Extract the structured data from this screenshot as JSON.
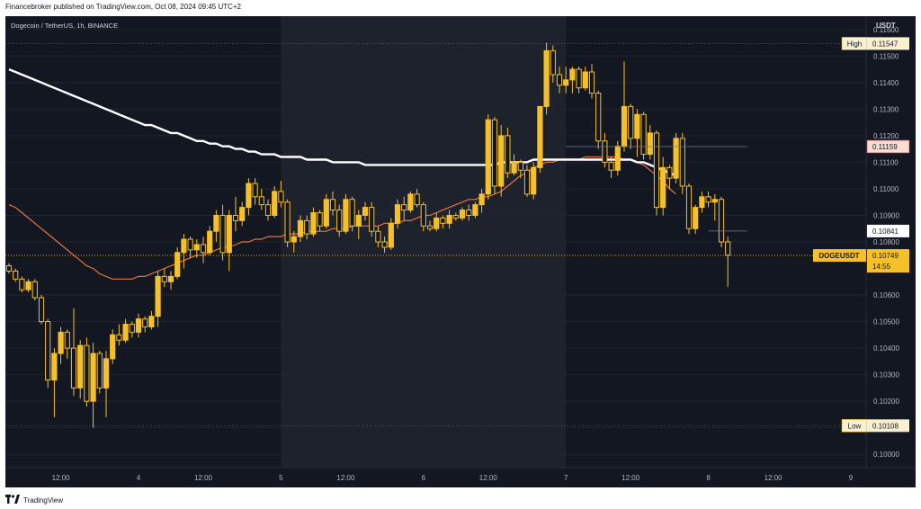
{
  "header": {
    "published": "Financebroker published on TradingView.com, Oct 08, 2024 09:45 UTC+2",
    "symbol": "Dogecoin / TetherUS, 1h, BINANCE",
    "currency": "USDT"
  },
  "footer": {
    "brand": "TradingView",
    "logo": "tv-logo-icon"
  },
  "colors": {
    "background": "#131722",
    "up": "#f6c028",
    "down": "#f6c028",
    "ma_short": "#e8743b",
    "ma_long": "#ffffff",
    "grid": "#1f2430",
    "highlight_session": "#1e222d"
  },
  "chart_data": {
    "type": "candlestick",
    "symbol": "DOGEUSDT",
    "interval": "1h",
    "exchange": "BINANCE",
    "ylim": [
      0.0995,
      0.1165
    ],
    "y_ticks": [
      "0.11600",
      "0.11500",
      "0.11400",
      "0.11300",
      "0.11200",
      "0.11100",
      "0.11000",
      "0.10900",
      "0.10800",
      "0.10600",
      "0.10500",
      "0.10400",
      "0.10300",
      "0.10200",
      "0.10100",
      "0.10000"
    ],
    "x_ticks": [
      "12:00",
      "4",
      "12:00",
      "5",
      "12:00",
      "6",
      "12:00",
      "7",
      "12:00",
      "8",
      "12:00",
      "9"
    ],
    "price_tags": [
      {
        "label": "High",
        "value": "0.11547",
        "price": 0.11547,
        "style": "hl"
      },
      {
        "label": "",
        "value": "0.11159",
        "price": 0.11159,
        "style": "red"
      },
      {
        "label": "",
        "value": "0.10841",
        "price": 0.10841,
        "style": "white"
      },
      {
        "label": "DOGEUSDT",
        "value": "0.10749",
        "price": 0.10749,
        "style": "current",
        "countdown": "14:55"
      },
      {
        "label": "Low",
        "value": "0.10108",
        "price": 0.10108,
        "style": "hl"
      }
    ],
    "series": [
      {
        "name": "MA long",
        "values": [
          0.1145,
          0.1144,
          0.1143,
          0.1142,
          0.1141,
          0.114,
          0.1139,
          0.1138,
          0.1137,
          0.1136,
          0.1135,
          0.1134,
          0.1133,
          0.1132,
          0.1131,
          0.113,
          0.1129,
          0.1128,
          0.1127,
          0.1126,
          0.1125,
          0.1124,
          0.1124,
          0.1123,
          0.1122,
          0.1121,
          0.1121,
          0.112,
          0.1119,
          0.1118,
          0.1118,
          0.1117,
          0.1117,
          0.1116,
          0.1116,
          0.1115,
          0.1115,
          0.1114,
          0.1114,
          0.1113,
          0.1113,
          0.1113,
          0.1112,
          0.1112,
          0.1112,
          0.1112,
          0.1111,
          0.1111,
          0.1111,
          0.1111,
          0.111,
          0.111,
          0.111,
          0.111,
          0.111,
          0.1109,
          0.1109,
          0.1109,
          0.1109,
          0.1109,
          0.1109,
          0.1109,
          0.1109,
          0.1109,
          0.1109,
          0.1109,
          0.1109,
          0.1109,
          0.1109,
          0.1109,
          0.1109,
          0.1109,
          0.1109,
          0.1109,
          0.1109,
          0.1109,
          0.111,
          0.111,
          0.111,
          0.111,
          0.111,
          0.1111,
          0.1111,
          0.1111,
          0.1111,
          0.1111,
          0.1111,
          0.1111,
          0.1111,
          0.1111,
          0.1111,
          0.1111,
          0.1111,
          0.1111,
          0.1111,
          0.1111,
          0.1111,
          0.111,
          0.111,
          0.1109,
          0.1108,
          0.1107,
          0.1106,
          0.1105
        ]
      },
      {
        "name": "MA short",
        "values": [
          0.1094,
          0.1093,
          0.1091,
          0.1089,
          0.1087,
          0.1085,
          0.1083,
          0.1081,
          0.1079,
          0.1077,
          0.1075,
          0.1073,
          0.1071,
          0.107,
          0.1068,
          0.1067,
          0.1066,
          0.1066,
          0.1066,
          0.1066,
          0.1067,
          0.1067,
          0.1068,
          0.1069,
          0.107,
          0.1071,
          0.1072,
          0.1073,
          0.1074,
          0.1075,
          0.1075,
          0.1076,
          0.1077,
          0.1078,
          0.1078,
          0.1079,
          0.108,
          0.108,
          0.1081,
          0.1081,
          0.1082,
          0.1082,
          0.1082,
          0.1083,
          0.1083,
          0.1083,
          0.1084,
          0.1084,
          0.1084,
          0.1084,
          0.1085,
          0.1085,
          0.1085,
          0.1086,
          0.1086,
          0.1086,
          0.1086,
          0.1086,
          0.1087,
          0.1087,
          0.1087,
          0.1088,
          0.1088,
          0.1089,
          0.109,
          0.109,
          0.1091,
          0.1092,
          0.1093,
          0.1094,
          0.1095,
          0.1096,
          0.1096,
          0.1097,
          0.1097,
          0.1098,
          0.1099,
          0.1101,
          0.1103,
          0.1105,
          0.1106,
          0.1108,
          0.1109,
          0.111,
          0.111,
          0.1111,
          0.1111,
          0.1111,
          0.1111,
          0.1112,
          0.1112,
          0.1112,
          0.1112,
          0.1112,
          0.1112,
          0.1111,
          0.1111,
          0.111,
          0.1109,
          0.1107,
          0.1105,
          0.1103,
          0.11,
          0.1098
        ]
      },
      {
        "name": "OHLC",
        "values": [
          [
            0.1071,
            0.1072,
            0.1068,
            0.1069
          ],
          [
            0.1069,
            0.107,
            0.1065,
            0.1066
          ],
          [
            0.1066,
            0.1067,
            0.1061,
            0.1062
          ],
          [
            0.1062,
            0.1066,
            0.1061,
            0.1065
          ],
          [
            0.1065,
            0.1066,
            0.1058,
            0.1059
          ],
          [
            0.1059,
            0.106,
            0.1049,
            0.105
          ],
          [
            0.105,
            0.1051,
            0.1025,
            0.1028
          ],
          [
            0.1028,
            0.104,
            0.1014,
            0.1038
          ],
          [
            0.1038,
            0.1048,
            0.1034,
            0.1046
          ],
          [
            0.1046,
            0.1047,
            0.1036,
            0.104
          ],
          [
            0.104,
            0.1055,
            0.1022,
            0.1025
          ],
          [
            0.1025,
            0.1043,
            0.1021,
            0.1041
          ],
          [
            0.1041,
            0.1044,
            0.1018,
            0.102
          ],
          [
            0.102,
            0.1042,
            0.101,
            0.1038
          ],
          [
            0.1038,
            0.1039,
            0.1023,
            0.1025
          ],
          [
            0.1025,
            0.1039,
            0.1014,
            0.1036
          ],
          [
            0.1036,
            0.1047,
            0.1034,
            0.1045
          ],
          [
            0.1045,
            0.1049,
            0.1041,
            0.1043
          ],
          [
            0.1043,
            0.1051,
            0.1042,
            0.1049
          ],
          [
            0.1049,
            0.105,
            0.1044,
            0.1046
          ],
          [
            0.1046,
            0.1053,
            0.1044,
            0.1051
          ],
          [
            0.1051,
            0.1052,
            0.1046,
            0.1048
          ],
          [
            0.1048,
            0.1054,
            0.1047,
            0.1052
          ],
          [
            0.1052,
            0.1069,
            0.1048,
            0.1067
          ],
          [
            0.1067,
            0.107,
            0.1063,
            0.1065
          ],
          [
            0.1065,
            0.1069,
            0.1062,
            0.1067
          ],
          [
            0.1067,
            0.1078,
            0.1066,
            0.1076
          ],
          [
            0.1076,
            0.1083,
            0.107,
            0.1081
          ],
          [
            0.1081,
            0.1082,
            0.1074,
            0.1077
          ],
          [
            0.1077,
            0.1081,
            0.1074,
            0.1079
          ],
          [
            0.1079,
            0.1082,
            0.1072,
            0.1076
          ],
          [
            0.1076,
            0.1086,
            0.1075,
            0.1084
          ],
          [
            0.1084,
            0.1092,
            0.108,
            0.109
          ],
          [
            0.109,
            0.1094,
            0.1073,
            0.1076
          ],
          [
            0.1076,
            0.1092,
            0.1069,
            0.109
          ],
          [
            0.109,
            0.1097,
            0.1084,
            0.1088
          ],
          [
            0.1088,
            0.1095,
            0.1086,
            0.1093
          ],
          [
            0.1093,
            0.1104,
            0.109,
            0.1102
          ],
          [
            0.1102,
            0.1104,
            0.1094,
            0.1097
          ],
          [
            0.1097,
            0.11,
            0.1092,
            0.1094
          ],
          [
            0.1094,
            0.1096,
            0.1088,
            0.109
          ],
          [
            0.109,
            0.1101,
            0.1089,
            0.1099
          ],
          [
            0.1099,
            0.1103,
            0.1093,
            0.1095
          ],
          [
            0.1095,
            0.1096,
            0.1078,
            0.108
          ],
          [
            0.108,
            0.1084,
            0.1076,
            0.1082
          ],
          [
            0.1082,
            0.109,
            0.108,
            0.1088
          ],
          [
            0.1088,
            0.109,
            0.1081,
            0.1083
          ],
          [
            0.1083,
            0.1093,
            0.1082,
            0.1091
          ],
          [
            0.1091,
            0.1092,
            0.1084,
            0.1086
          ],
          [
            0.1086,
            0.1098,
            0.1085,
            0.1096
          ],
          [
            0.1096,
            0.1099,
            0.109,
            0.1092
          ],
          [
            0.1092,
            0.1094,
            0.1082,
            0.1084
          ],
          [
            0.1084,
            0.1098,
            0.1083,
            0.1096
          ],
          [
            0.1096,
            0.1097,
            0.1084,
            0.1086
          ],
          [
            0.1086,
            0.1092,
            0.1081,
            0.109
          ],
          [
            0.109,
            0.1095,
            0.1088,
            0.1093
          ],
          [
            0.1093,
            0.1095,
            0.1082,
            0.1084
          ],
          [
            0.1084,
            0.1086,
            0.1078,
            0.108
          ],
          [
            0.108,
            0.1082,
            0.1076,
            0.1078
          ],
          [
            0.1078,
            0.1089,
            0.1077,
            0.1087
          ],
          [
            0.1087,
            0.1096,
            0.1085,
            0.1094
          ],
          [
            0.1094,
            0.1097,
            0.1088,
            0.1092
          ],
          [
            0.1092,
            0.1099,
            0.1091,
            0.1098
          ],
          [
            0.1098,
            0.11,
            0.1093,
            0.1094
          ],
          [
            0.1094,
            0.1095,
            0.1084,
            0.1086
          ],
          [
            0.1086,
            0.1088,
            0.1084,
            0.1085
          ],
          [
            0.1085,
            0.1091,
            0.1084,
            0.1089
          ],
          [
            0.1089,
            0.109,
            0.1085,
            0.1087
          ],
          [
            0.1087,
            0.1092,
            0.1085,
            0.109
          ],
          [
            0.109,
            0.1091,
            0.1088,
            0.1089
          ],
          [
            0.1089,
            0.1093,
            0.1088,
            0.1092
          ],
          [
            0.1092,
            0.1094,
            0.1088,
            0.109
          ],
          [
            0.109,
            0.1095,
            0.1089,
            0.1094
          ],
          [
            0.1094,
            0.11,
            0.1091,
            0.1098
          ],
          [
            0.1098,
            0.1128,
            0.1096,
            0.1126
          ],
          [
            0.1126,
            0.1127,
            0.1098,
            0.1101
          ],
          [
            0.1101,
            0.1124,
            0.1097,
            0.112
          ],
          [
            0.112,
            0.1123,
            0.1104,
            0.1106
          ],
          [
            0.1106,
            0.1113,
            0.1105,
            0.111
          ],
          [
            0.111,
            0.1111,
            0.1104,
            0.1107
          ],
          [
            0.1107,
            0.1109,
            0.1097,
            0.1098
          ],
          [
            0.1098,
            0.111,
            0.1096,
            0.1108
          ],
          [
            0.1108,
            0.1131,
            0.1106,
            0.1131
          ],
          [
            0.1131,
            0.1155,
            0.1128,
            0.1152
          ],
          [
            0.1152,
            0.1154,
            0.114,
            0.1143
          ],
          [
            0.1143,
            0.1146,
            0.1136,
            0.1139
          ],
          [
            0.1139,
            0.1146,
            0.1136,
            0.1141
          ],
          [
            0.1141,
            0.1146,
            0.1136,
            0.1145
          ],
          [
            0.1145,
            0.1146,
            0.1136,
            0.1138
          ],
          [
            0.1138,
            0.1146,
            0.1137,
            0.1144
          ],
          [
            0.1144,
            0.1147,
            0.1134,
            0.1136
          ],
          [
            0.1136,
            0.1137,
            0.1115,
            0.1118
          ],
          [
            0.1118,
            0.1121,
            0.1108,
            0.111
          ],
          [
            0.111,
            0.1112,
            0.1104,
            0.1107
          ],
          [
            0.1107,
            0.1118,
            0.1105,
            0.1116
          ],
          [
            0.1116,
            0.1148,
            0.1114,
            0.1131
          ],
          [
            0.1131,
            0.1132,
            0.1115,
            0.1119
          ],
          [
            0.1119,
            0.113,
            0.1112,
            0.1128
          ],
          [
            0.1128,
            0.1129,
            0.1111,
            0.1113
          ],
          [
            0.1113,
            0.1124,
            0.1111,
            0.1121
          ],
          [
            0.1121,
            0.1122,
            0.109,
            0.1093
          ],
          [
            0.1093,
            0.1112,
            0.109,
            0.1108
          ],
          [
            0.1108,
            0.1109,
            0.11,
            0.1104
          ],
          [
            0.1104,
            0.1121,
            0.1102,
            0.1119
          ],
          [
            0.1119,
            0.1121,
            0.1098,
            0.1101
          ],
          [
            0.1101,
            0.1102,
            0.1083,
            0.1085
          ],
          [
            0.1085,
            0.1094,
            0.1083,
            0.1093
          ],
          [
            0.1093,
            0.1099,
            0.1091,
            0.1097
          ],
          [
            0.1097,
            0.1099,
            0.1093,
            0.1095
          ],
          [
            0.1095,
            0.1098,
            0.1088,
            0.1096
          ],
          [
            0.1096,
            0.1097,
            0.1078,
            0.108
          ],
          [
            0.108,
            0.1082,
            0.1063,
            0.1075
          ]
        ]
      }
    ]
  }
}
